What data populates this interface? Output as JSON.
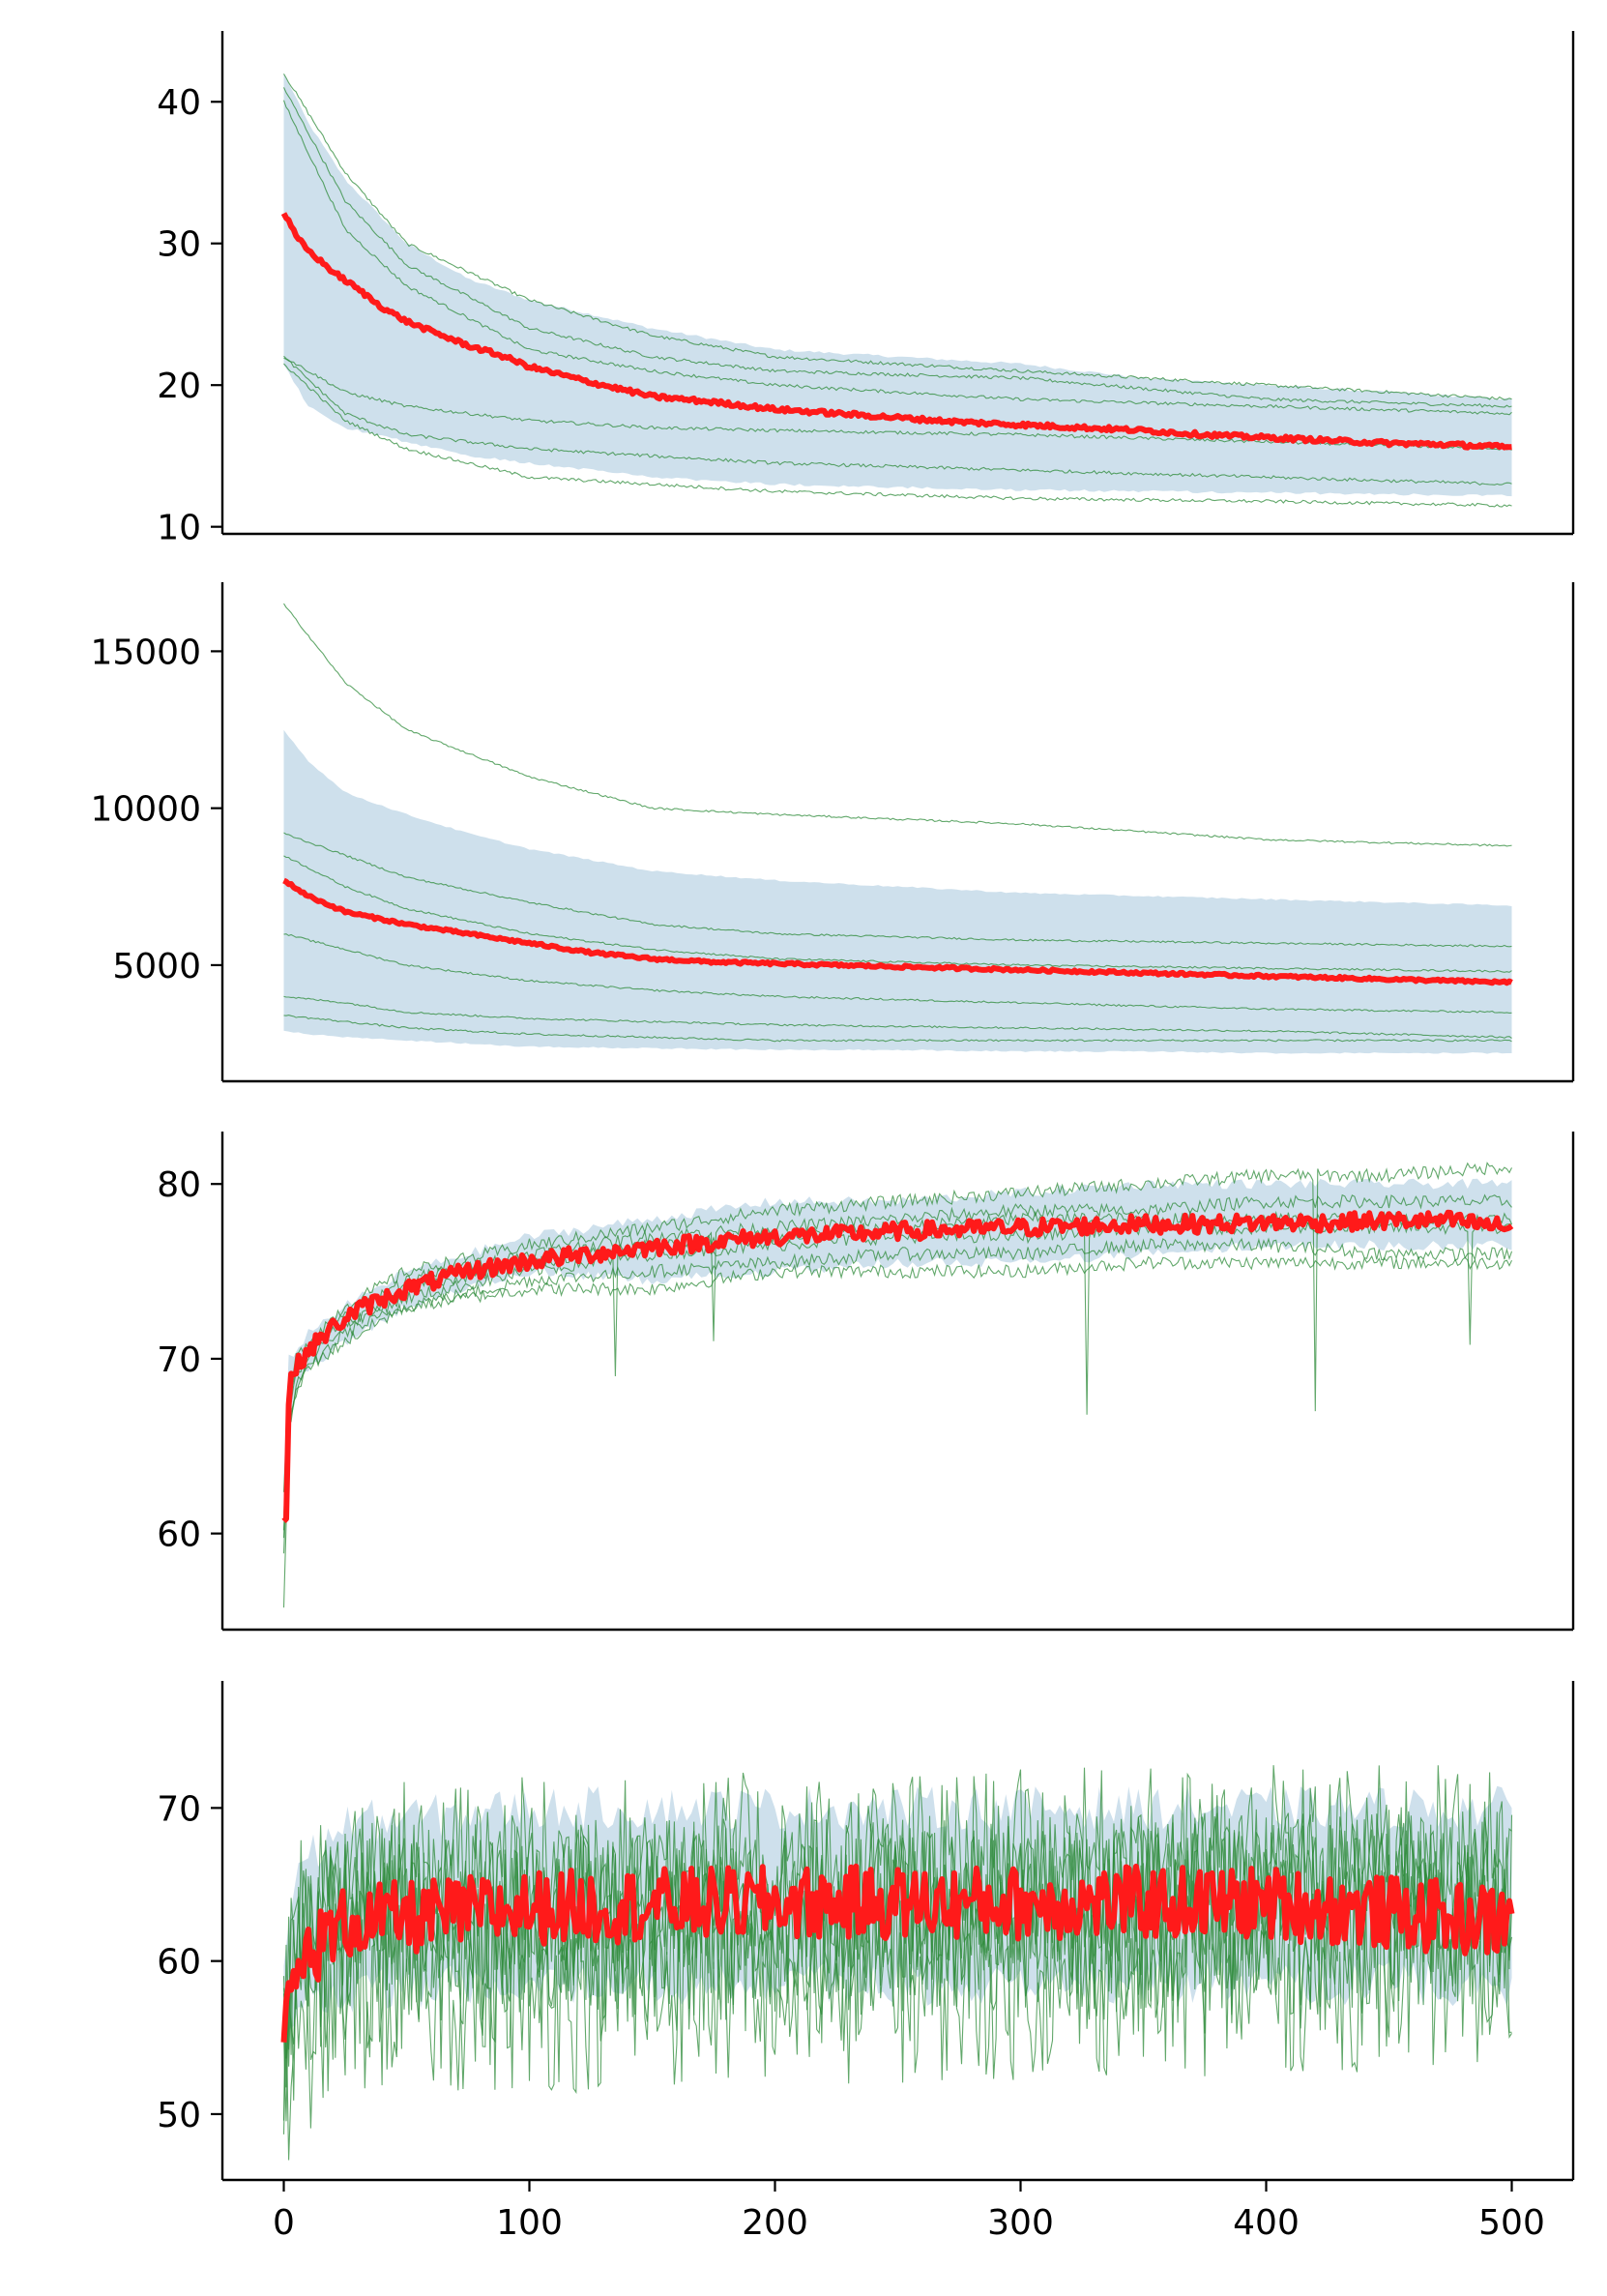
{
  "chart_data": [
    {
      "type": "line",
      "x": {
        "min": 0,
        "max": 500
      },
      "xlim": [
        -25,
        525
      ],
      "ylim": [
        9.5,
        45
      ],
      "yticks": [
        10,
        20,
        30,
        40
      ],
      "show_xticks": false,
      "band": {
        "x": [
          0,
          10,
          25,
          50,
          75,
          100,
          150,
          200,
          250,
          300,
          350,
          400,
          450,
          500
        ],
        "lower": [
          21.5,
          18.5,
          17.0,
          16.0,
          15.0,
          14.5,
          13.5,
          13.0,
          12.8,
          12.6,
          12.5,
          12.4,
          12.3,
          12.2
        ],
        "upper": [
          42.0,
          38.5,
          34.5,
          30.0,
          27.5,
          26.0,
          24.0,
          22.5,
          22.0,
          21.5,
          20.5,
          20.0,
          19.5,
          19.0
        ]
      },
      "runs": [
        {
          "x": [
            0,
            25,
            50,
            100,
            150,
            200,
            300,
            400,
            500
          ],
          "values": [
            42.0,
            35.0,
            30.0,
            26.0,
            23.5,
            22.0,
            21.0,
            20.0,
            19.0
          ]
        },
        {
          "x": [
            0,
            25,
            50,
            100,
            150,
            200,
            300,
            400,
            500
          ],
          "values": [
            41.0,
            33.0,
            28.5,
            24.0,
            22.0,
            21.0,
            20.5,
            19.0,
            18.5
          ]
        },
        {
          "x": [
            0,
            25,
            50,
            100,
            150,
            200,
            300,
            400,
            500
          ],
          "values": [
            40.0,
            31.0,
            27.0,
            22.5,
            21.0,
            20.0,
            19.0,
            18.5,
            18.0
          ]
        },
        {
          "x": [
            0,
            25,
            50,
            100,
            150,
            200,
            300,
            400,
            500
          ],
          "values": [
            22.0,
            19.5,
            18.5,
            17.5,
            17.0,
            16.8,
            16.5,
            16.0,
            15.5
          ]
        },
        {
          "x": [
            0,
            25,
            50,
            100,
            150,
            200,
            300,
            400,
            500
          ],
          "values": [
            22.0,
            18.0,
            16.5,
            15.5,
            15.0,
            14.5,
            14.0,
            13.5,
            13.0
          ]
        },
        {
          "x": [
            0,
            25,
            50,
            100,
            150,
            200,
            300,
            400,
            500
          ],
          "values": [
            21.5,
            17.5,
            15.5,
            13.5,
            13.0,
            12.5,
            12.0,
            11.8,
            11.5
          ]
        }
      ],
      "mean": {
        "x": [
          0,
          5,
          10,
          20,
          30,
          40,
          50,
          60,
          75,
          90,
          100,
          125,
          150,
          175,
          200,
          225,
          250,
          275,
          300,
          325,
          350,
          375,
          400,
          425,
          450,
          475,
          500
        ],
        "values": [
          32.2,
          30.5,
          29.5,
          28.0,
          26.8,
          25.5,
          24.5,
          23.8,
          22.8,
          22.0,
          21.3,
          20.2,
          19.2,
          18.8,
          18.3,
          18.0,
          17.7,
          17.4,
          17.2,
          17.0,
          16.8,
          16.5,
          16.3,
          16.1,
          15.9,
          15.8,
          15.6
        ]
      },
      "noise": 0.15
    },
    {
      "type": "line",
      "x": {
        "min": 0,
        "max": 500
      },
      "xlim": [
        -25,
        525
      ],
      "ylim": [
        1300,
        17200
      ],
      "yticks": [
        5000,
        10000,
        15000
      ],
      "show_xticks": false,
      "band": {
        "x": [
          0,
          10,
          25,
          50,
          75,
          100,
          150,
          200,
          250,
          300,
          350,
          400,
          450,
          500
        ],
        "lower": [
          2900,
          2800,
          2700,
          2600,
          2500,
          2400,
          2350,
          2300,
          2300,
          2250,
          2250,
          2200,
          2200,
          2200
        ],
        "upper": [
          12500,
          11500,
          10500,
          9800,
          9200,
          8700,
          8000,
          7700,
          7500,
          7300,
          7200,
          7100,
          7000,
          6900
        ]
      },
      "runs": [
        {
          "x": [
            0,
            25,
            50,
            100,
            150,
            200,
            300,
            400,
            500
          ],
          "values": [
            16500,
            14000,
            12500,
            11000,
            10000,
            9800,
            9500,
            9000,
            8800
          ]
        },
        {
          "x": [
            0,
            25,
            50,
            100,
            150,
            200,
            300,
            400,
            500
          ],
          "values": [
            9200,
            8500,
            7800,
            7000,
            6300,
            6000,
            5800,
            5700,
            5600
          ]
        },
        {
          "x": [
            0,
            25,
            50,
            100,
            150,
            200,
            300,
            400,
            500
          ],
          "values": [
            8500,
            7500,
            6800,
            6000,
            5500,
            5200,
            5000,
            4900,
            4800
          ]
        },
        {
          "x": [
            0,
            25,
            50,
            100,
            150,
            200,
            300,
            400,
            500
          ],
          "values": [
            6000,
            5500,
            5000,
            4500,
            4200,
            4000,
            3800,
            3600,
            3500
          ]
        },
        {
          "x": [
            0,
            25,
            50,
            100,
            150,
            200,
            300,
            400,
            500
          ],
          "values": [
            4000,
            3800,
            3500,
            3300,
            3200,
            3100,
            3000,
            2900,
            2700
          ]
        },
        {
          "x": [
            0,
            25,
            50,
            100,
            150,
            200,
            300,
            400,
            500
          ],
          "values": [
            3400,
            3200,
            3000,
            2800,
            2700,
            2600,
            2600,
            2600,
            2600
          ]
        }
      ],
      "mean": {
        "x": [
          0,
          10,
          25,
          50,
          75,
          100,
          125,
          150,
          175,
          200,
          225,
          250,
          275,
          300,
          325,
          350,
          375,
          400,
          425,
          450,
          475,
          500
        ],
        "values": [
          7700,
          7200,
          6700,
          6300,
          6000,
          5700,
          5400,
          5200,
          5100,
          5050,
          5000,
          4950,
          4900,
          4850,
          4800,
          4750,
          4700,
          4650,
          4600,
          4550,
          4500,
          4450
        ]
      },
      "noise": 40
    },
    {
      "type": "line",
      "x": {
        "min": 0,
        "max": 500
      },
      "xlim": [
        -25,
        525
      ],
      "ylim": [
        54.5,
        83
      ],
      "yticks": [
        60,
        70,
        80
      ],
      "show_xticks": false,
      "band": {
        "x": [
          0,
          2,
          5,
          10,
          25,
          50,
          100,
          150,
          200,
          250,
          300,
          350,
          400,
          450,
          500
        ],
        "lower": [
          59,
          66,
          68.5,
          69.5,
          71,
          73,
          75,
          74.5,
          75,
          75.5,
          75.5,
          76,
          76.5,
          76.5,
          76.5
        ],
        "upper": [
          63,
          70,
          70.5,
          71.5,
          73,
          75,
          77,
          78,
          79,
          79,
          79.5,
          80,
          80,
          80,
          80
        ]
      },
      "runs": [
        {
          "x": [
            0,
            2,
            5,
            10,
            25,
            50,
            100,
            150,
            200,
            250,
            300,
            350,
            400,
            450,
            500
          ],
          "values": [
            62,
            68,
            70,
            71,
            73,
            75,
            76.5,
            77.5,
            78.5,
            79,
            79.5,
            80,
            80.5,
            80.5,
            81
          ]
        },
        {
          "x": [
            0,
            2,
            5,
            10,
            25,
            50,
            100,
            150,
            200,
            250,
            300,
            350,
            400,
            450,
            500
          ],
          "values": [
            61,
            67.5,
            69.5,
            70.5,
            72.5,
            74.5,
            76,
            77,
            77.5,
            78,
            78.5,
            78.5,
            79,
            79,
            79
          ]
        },
        {
          "x": [
            0,
            2,
            5,
            10,
            25,
            50,
            100,
            150,
            200,
            250,
            300,
            350,
            400,
            450,
            500
          ],
          "values": [
            60,
            67,
            69,
            70.5,
            72,
            74,
            75.5,
            76.5,
            77,
            77.5,
            78,
            78,
            78,
            78,
            78
          ]
        },
        {
          "x": [
            0,
            2,
            5,
            10,
            25,
            50,
            100,
            150,
            200,
            250,
            300,
            350,
            400,
            450,
            500
          ],
          "values": [
            60,
            66.5,
            68.5,
            70,
            72,
            73.5,
            75,
            76,
            76.5,
            77,
            77,
            77.5,
            77.5,
            77.5,
            77.5
          ]
        },
        {
          "x": [
            0,
            2,
            5,
            10,
            25,
            50,
            100,
            150,
            200,
            250,
            300,
            350,
            400,
            450,
            500
          ],
          "values": [
            59,
            66,
            68,
            69.5,
            71.5,
            73,
            74.5,
            75,
            75.5,
            76,
            76,
            76.5,
            76.5,
            76,
            76
          ]
        },
        {
          "x": [
            0,
            2,
            5,
            10,
            25,
            50,
            100,
            150,
            200,
            250,
            300,
            350,
            400,
            450,
            500
          ],
          "values": [
            55.5,
            66,
            68,
            69.5,
            71,
            73,
            74,
            74,
            75,
            75,
            75,
            75.5,
            75.5,
            75.5,
            75.5
          ]
        }
      ],
      "dips": [
        {
          "x": 135,
          "value": 69
        },
        {
          "x": 175,
          "value": 71
        },
        {
          "x": 327,
          "value": 66.8
        },
        {
          "x": 420,
          "value": 67
        },
        {
          "x": 483,
          "value": 70.8
        }
      ],
      "mean": {
        "x": [
          0,
          1,
          2,
          3,
          5,
          10,
          20,
          30,
          50,
          75,
          100,
          125,
          150,
          175,
          200,
          225,
          250,
          275,
          300,
          325,
          350,
          375,
          400,
          425,
          450,
          475,
          500
        ],
        "values": [
          61,
          61,
          67.5,
          68.8,
          69.5,
          70.5,
          71.8,
          72.8,
          74,
          75,
          75.6,
          76,
          76.4,
          76.7,
          77,
          77.1,
          77.3,
          77.4,
          77.5,
          77.6,
          77.7,
          77.7,
          77.8,
          77.8,
          77.9,
          77.9,
          77.5
        ]
      },
      "noise": 0.5
    },
    {
      "type": "line",
      "x": {
        "min": 0,
        "max": 500
      },
      "xlim": [
        -25,
        525
      ],
      "ylim": [
        45.7,
        78.3
      ],
      "yticks": [
        50,
        60,
        70
      ],
      "show_xticks": true,
      "xticks": [
        0,
        100,
        200,
        300,
        400,
        500
      ],
      "band": {
        "x": [
          0,
          5,
          25,
          100,
          200,
          300,
          400,
          500
        ],
        "lower": [
          55,
          57,
          58,
          58.5,
          58.5,
          58.5,
          58.5,
          58.5
        ],
        "upper": [
          60,
          66,
          69,
          70,
          70,
          70,
          70,
          70
        ]
      },
      "runs": [
        {
          "x": [
            0,
            5,
            25,
            500
          ],
          "values": [
            50,
            55,
            58,
            60
          ],
          "jitter": 7
        },
        {
          "x": [
            0,
            5,
            25,
            500
          ],
          "values": [
            52,
            58,
            62,
            63
          ],
          "jitter": 6
        },
        {
          "x": [
            0,
            5,
            25,
            500
          ],
          "values": [
            55,
            60,
            63,
            64
          ],
          "jitter": 6
        },
        {
          "x": [
            0,
            5,
            25,
            500
          ],
          "values": [
            56,
            61,
            64,
            65
          ],
          "jitter": 5
        },
        {
          "x": [
            0,
            5,
            25,
            500
          ],
          "values": [
            54,
            62,
            66,
            67
          ],
          "jitter": 6
        },
        {
          "x": [
            0,
            5,
            25,
            500
          ],
          "values": [
            53,
            59,
            61,
            62
          ],
          "jitter": 7
        }
      ],
      "mean": {
        "x": [
          0,
          3,
          10,
          25,
          100,
          200,
          300,
          400,
          500
        ],
        "values": [
          53.8,
          58,
          60.5,
          62.5,
          63.5,
          63.8,
          63.8,
          63.8,
          62.5
        ]
      },
      "noise": 2.4
    }
  ],
  "colors": {
    "mean": "#ff1a1a",
    "runs": "#2e8b3a",
    "band": "#c5dae9",
    "axes": "#000000"
  }
}
